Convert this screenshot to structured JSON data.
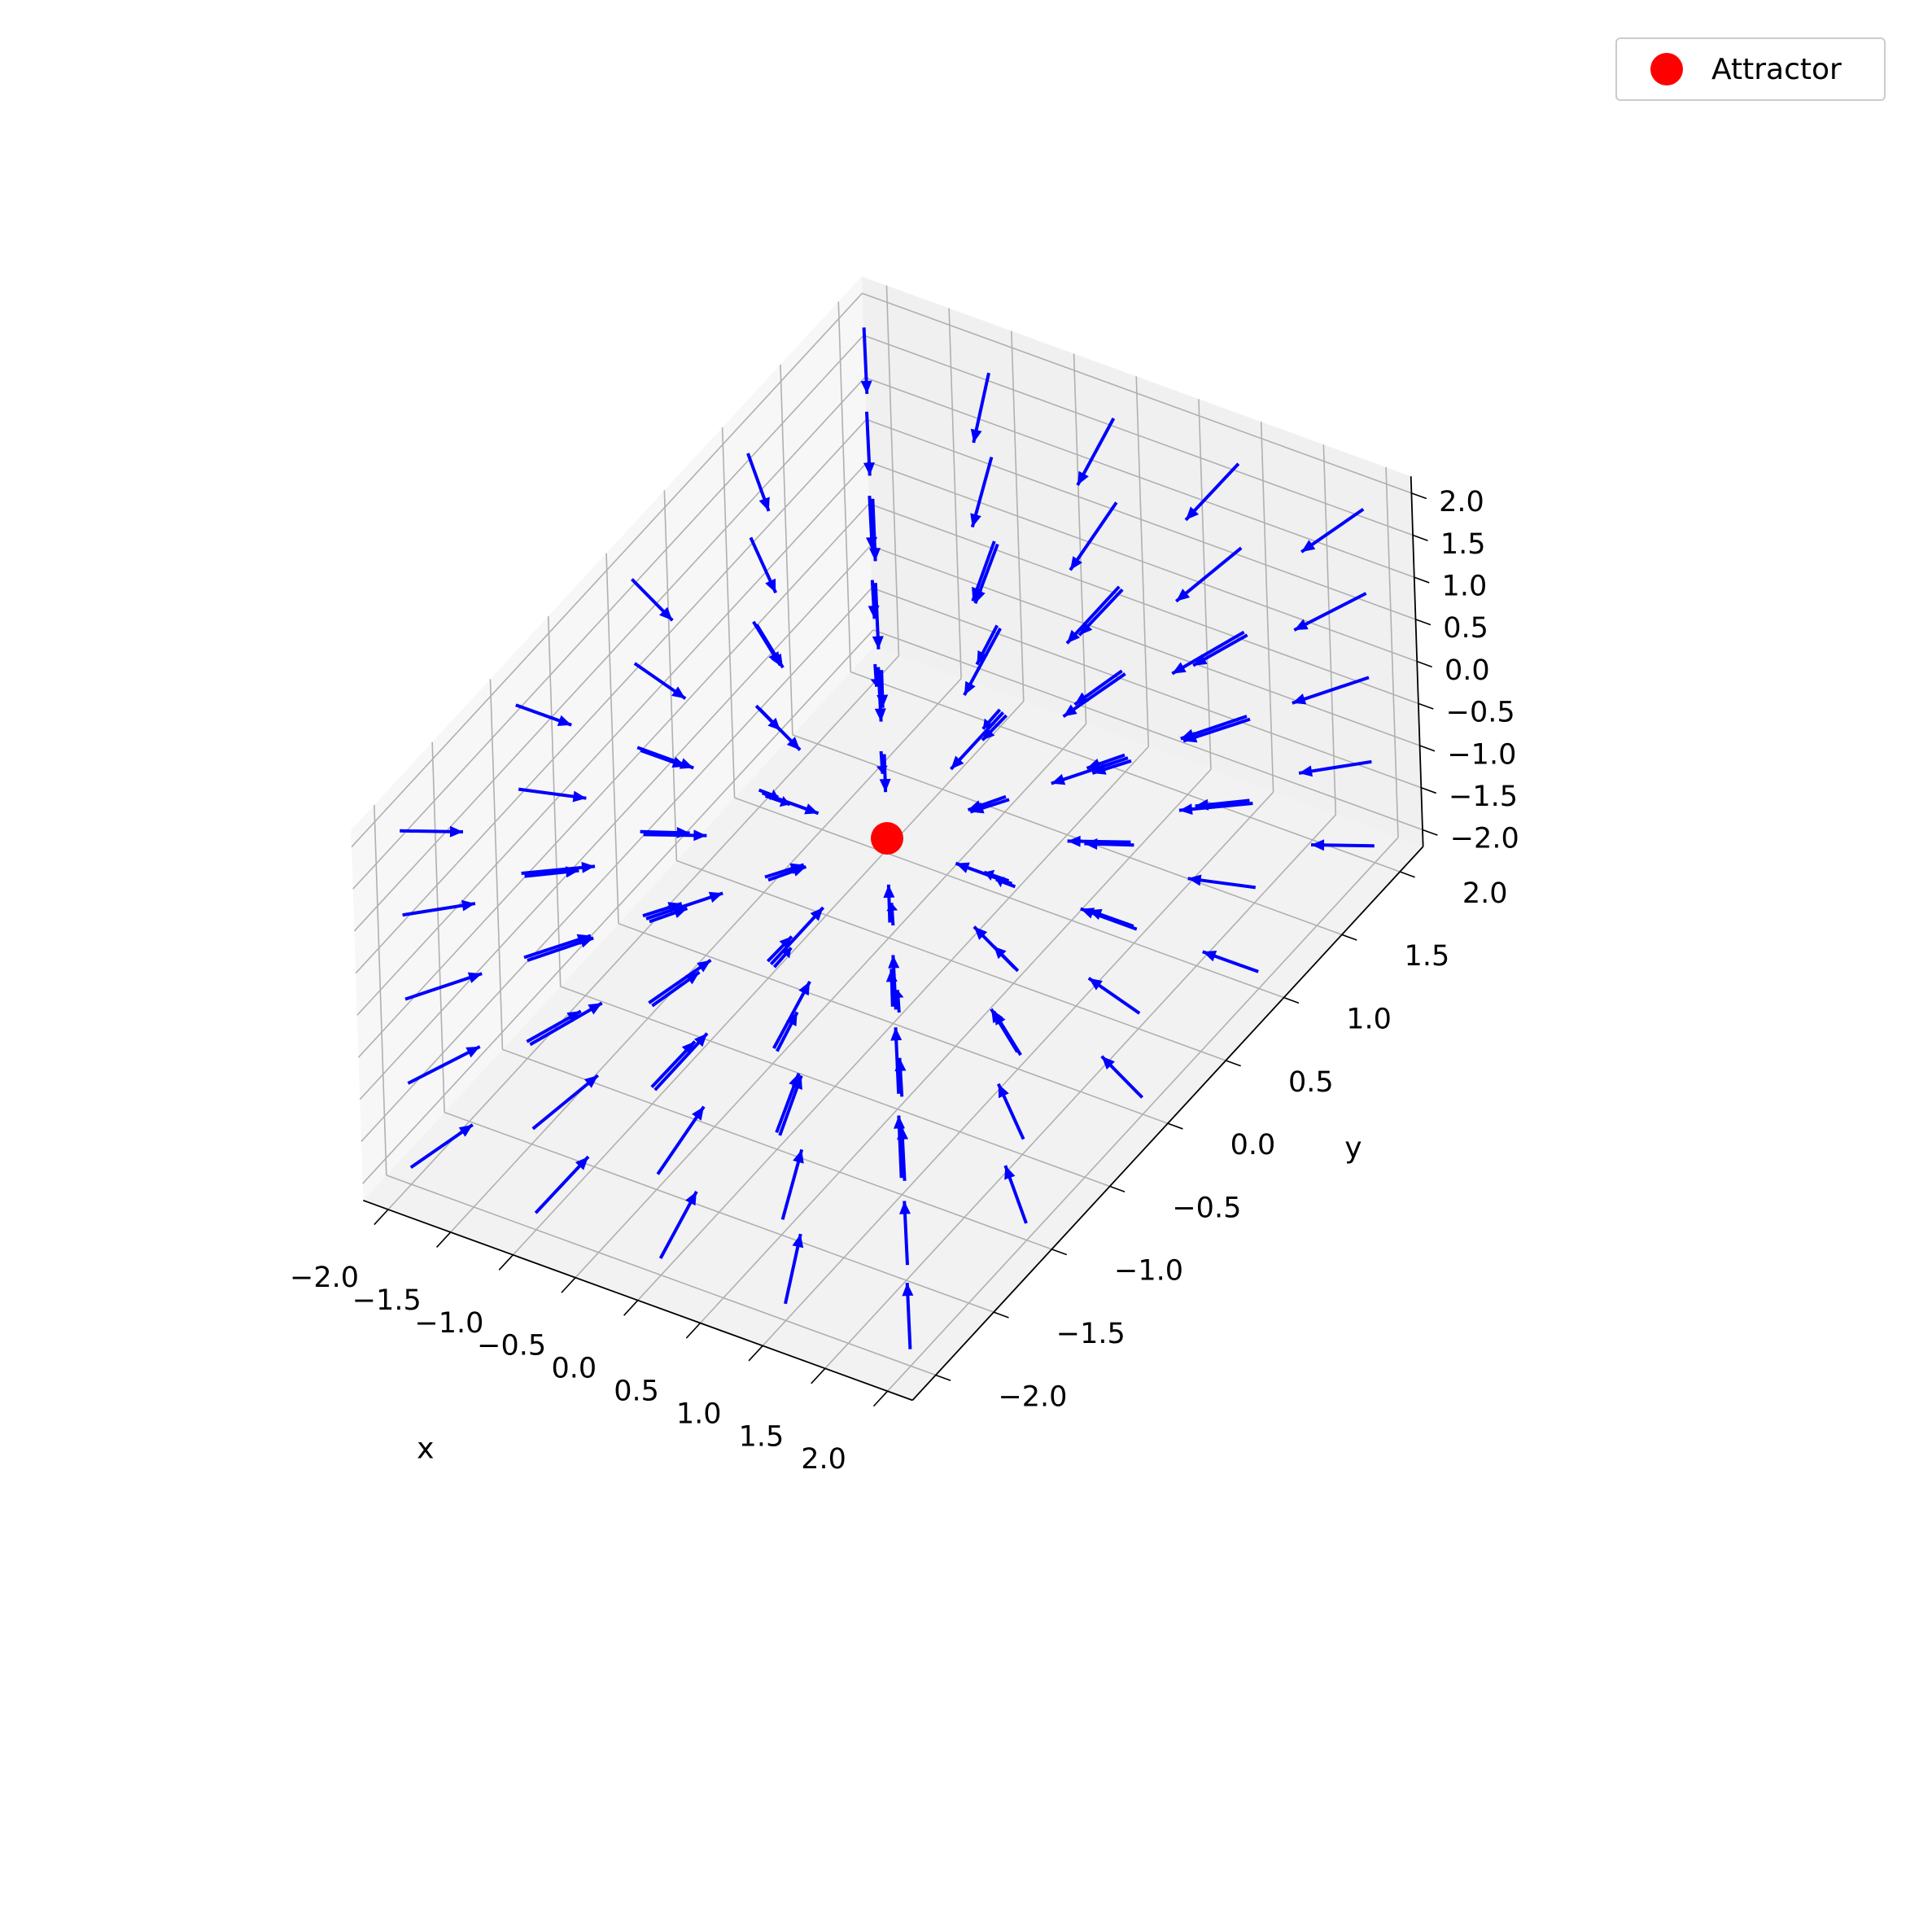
{
  "chart_data": {
    "type": "quiver3d",
    "title": "",
    "xlabel": "x",
    "ylabel": "y",
    "zlabel": "",
    "xlim": [
      -2.2,
      2.2
    ],
    "ylim": [
      -2.2,
      2.2
    ],
    "zlim": [
      -2.2,
      2.2
    ],
    "xticks": [
      "−2.0",
      "−1.5",
      "−1.0",
      "−0.5",
      "0.0",
      "0.5",
      "1.0",
      "1.5",
      "2.0"
    ],
    "yticks": [
      "−2.0",
      "−1.5",
      "−1.0",
      "−0.5",
      "0.0",
      "0.5",
      "1.0",
      "1.5",
      "2.0"
    ],
    "zticks": [
      "−2.0",
      "−1.5",
      "−1.0",
      "−0.5",
      "0.0",
      "0.5",
      "1.0",
      "1.5",
      "2.0"
    ],
    "grid": true,
    "vector_field": {
      "grid_values": [
        -2.0,
        -1.0,
        0.0,
        1.0,
        2.0
      ],
      "components": "(-x, -y, -z) normalized",
      "color": "#0000ff"
    },
    "series": [
      {
        "name": "Attractor",
        "type": "scatter",
        "x": [
          0.0
        ],
        "y": [
          0.0
        ],
        "z": [
          0.0
        ],
        "color": "#ff0000"
      }
    ],
    "legend_position": "top-right"
  },
  "legend": {
    "label": "Attractor",
    "color": "#ff0000"
  }
}
